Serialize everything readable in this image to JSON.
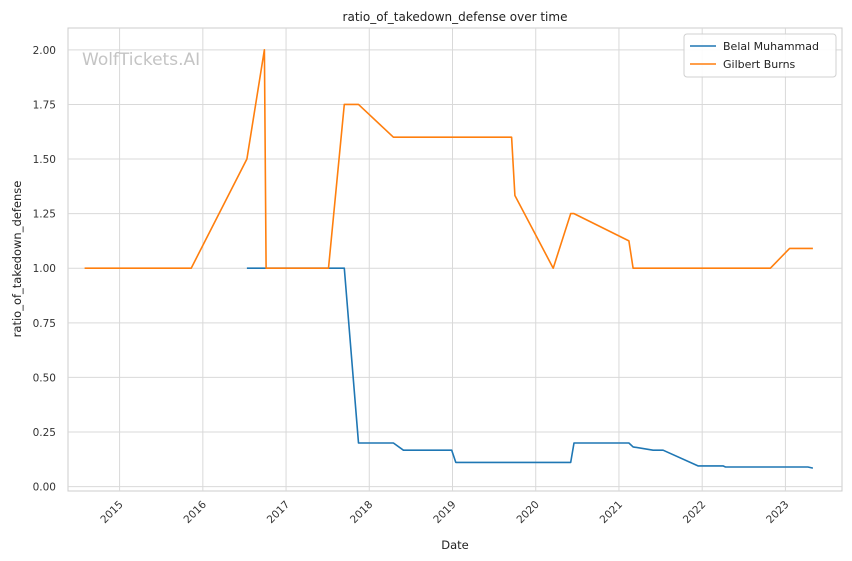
{
  "chart_data": {
    "type": "line",
    "title": "ratio_of_takedown_defense over time",
    "xlabel": "Date",
    "ylabel": "ratio_of_takedown_defense",
    "watermark": "WolfTickets.AI",
    "xlim": [
      2014.38,
      2023.68
    ],
    "ylim": [
      -0.02,
      2.1
    ],
    "xticks": [
      2015,
      2016,
      2017,
      2018,
      2019,
      2020,
      2021,
      2022,
      2023
    ],
    "yticks": [
      0.0,
      0.25,
      0.5,
      0.75,
      1.0,
      1.25,
      1.5,
      1.75,
      2.0
    ],
    "ytick_labels": [
      "0.00",
      "0.25",
      "0.50",
      "0.75",
      "1.00",
      "1.25",
      "1.50",
      "1.75",
      "2.00"
    ],
    "grid": true,
    "legend": "top-right",
    "series": [
      {
        "name": "Belal Muhammad",
        "color": "#1f77b4",
        "x": [
          2016.53,
          2017.7,
          2017.87,
          2018.29,
          2018.41,
          2018.99,
          2019.04,
          2020.42,
          2020.46,
          2021.12,
          2021.17,
          2021.41,
          2021.53,
          2021.95,
          2022.25,
          2022.28,
          2023.27,
          2023.33
        ],
        "y": [
          1.0,
          1.0,
          0.2,
          0.2,
          0.167,
          0.167,
          0.111,
          0.111,
          0.2,
          0.2,
          0.182,
          0.167,
          0.167,
          0.095,
          0.095,
          0.09,
          0.09,
          0.085
        ]
      },
      {
        "name": "Gilbert Burns",
        "color": "#ff7f0e",
        "x": [
          2014.58,
          2015.86,
          2016.53,
          2016.74,
          2016.76,
          2017.51,
          2017.7,
          2017.87,
          2018.29,
          2019.71,
          2019.75,
          2020.21,
          2020.42,
          2020.46,
          2021.12,
          2021.17,
          2022.82,
          2023.05,
          2023.33
        ],
        "y": [
          1.0,
          1.0,
          1.5,
          2.0,
          1.0,
          1.0,
          1.75,
          1.75,
          1.6,
          1.6,
          1.333,
          1.0,
          1.25,
          1.25,
          1.125,
          1.0,
          1.0,
          1.091,
          1.091
        ]
      }
    ]
  }
}
